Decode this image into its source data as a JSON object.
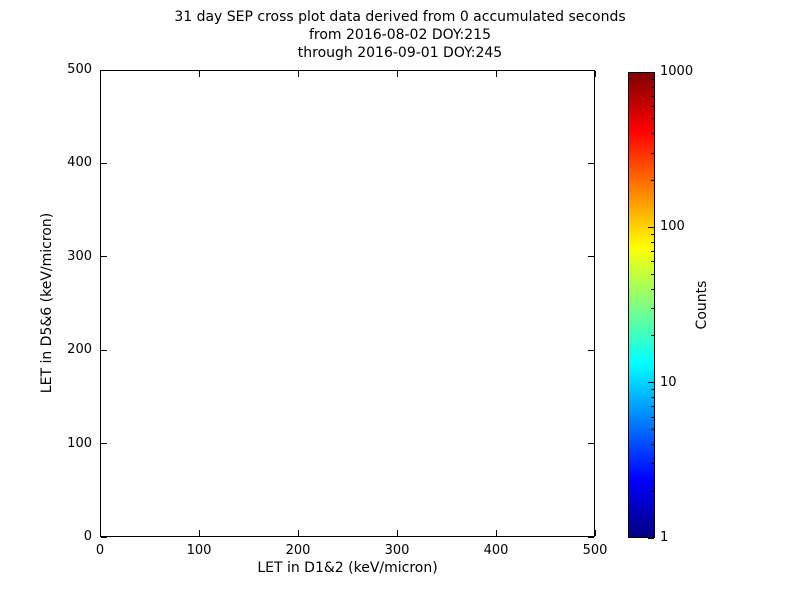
{
  "title": {
    "line1": "31 day SEP cross plot data derived from 0 accumulated seconds",
    "line2": "from 2016-08-02 DOY:215",
    "line3": "through 2016-09-01 DOY:245"
  },
  "colors": {
    "background": "#ffffff",
    "axes": "#000000"
  },
  "chart_data": {
    "type": "heatmap",
    "title": "31 day SEP cross plot data derived from 0 accumulated seconds\nfrom 2016-08-02 DOY:215\nthrough 2016-09-01 DOY:245",
    "xlabel": "LET in D1&2 (keV/micron)",
    "ylabel": "LET in D5&6 (keV/micron)",
    "xlim": [
      0,
      500
    ],
    "ylim": [
      0,
      500
    ],
    "x_ticks": [
      0,
      100,
      200,
      300,
      400,
      500
    ],
    "y_ticks": [
      0,
      100,
      200,
      300,
      400,
      500
    ],
    "grid": false,
    "points": [],
    "colorbar": {
      "label": "Counts",
      "scale": "log",
      "range": [
        1,
        1000
      ],
      "ticks": [
        1,
        10,
        100,
        1000
      ],
      "colormap": "jet",
      "colormap_stops": [
        {
          "pos": 0.0,
          "color": "#000080"
        },
        {
          "pos": 0.125,
          "color": "#0000ff"
        },
        {
          "pos": 0.375,
          "color": "#00ffff"
        },
        {
          "pos": 0.625,
          "color": "#ffff00"
        },
        {
          "pos": 0.875,
          "color": "#ff0000"
        },
        {
          "pos": 1.0,
          "color": "#800000"
        }
      ]
    }
  }
}
